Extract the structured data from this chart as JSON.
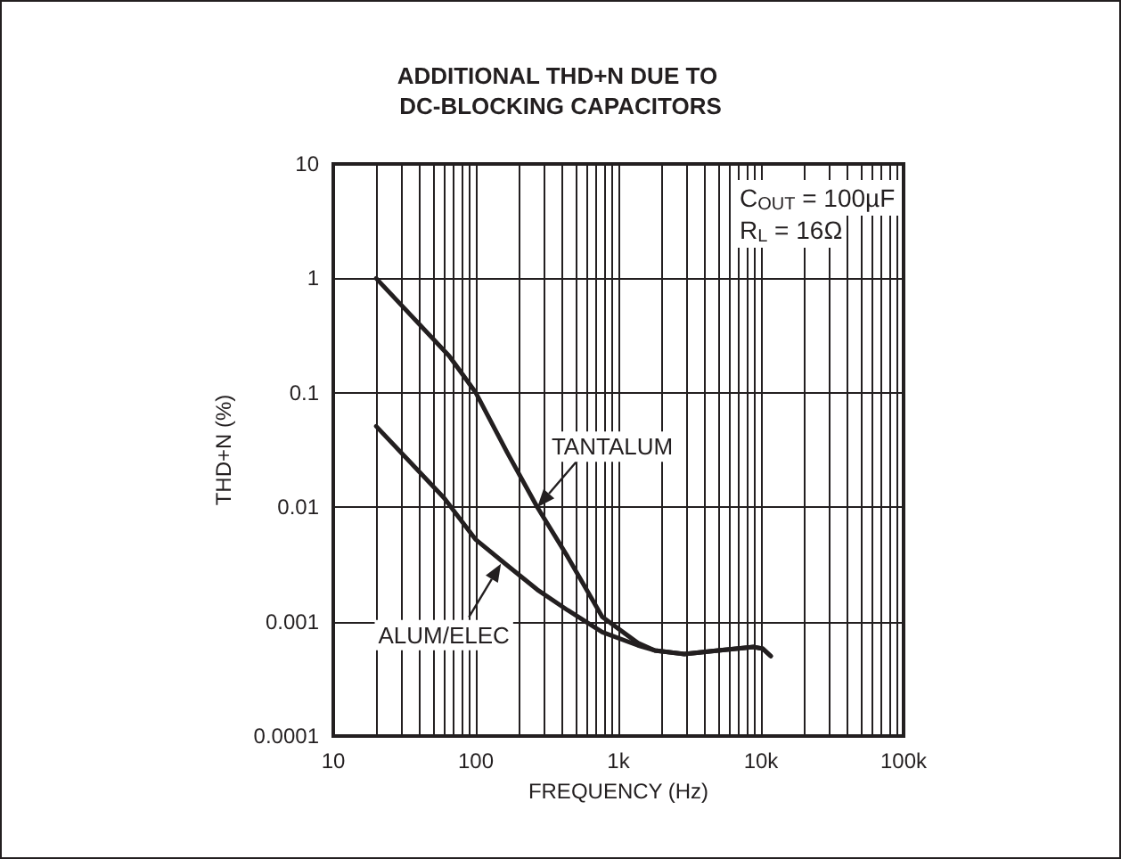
{
  "chart_data": {
    "type": "line",
    "title": "ADDITIONAL THD+N DUE TO DC-BLOCKING CAPACITORS",
    "xlabel": "FREQUENCY (Hz)",
    "ylabel": "THD+N (%)",
    "log": "xy",
    "grid": true,
    "marker": "none",
    "line_style": "solid",
    "xlim": [
      10,
      100000
    ],
    "xticks": [
      {
        "value": 10,
        "label": "10"
      },
      {
        "value": 100,
        "label": "100"
      },
      {
        "value": 1000,
        "label": "1k"
      },
      {
        "value": 10000,
        "label": "10k"
      },
      {
        "value": 100000,
        "label": "100k"
      }
    ],
    "ylim": [
      0.0001,
      10
    ],
    "yticks": [
      0.0001,
      0.001,
      0.01,
      0.1,
      1,
      10
    ],
    "series": [
      {
        "color": "#231f20",
        "x": [
          20,
          65,
          100,
          166,
          270,
          440,
          770,
          1370,
          1800,
          2900,
          5000,
          8900,
          10300,
          11700
        ],
        "values": [
          1.0,
          0.21,
          0.1,
          0.03,
          0.01,
          0.0037,
          0.0011,
          0.00065,
          0.00056,
          0.00052,
          0.00056,
          0.0006,
          0.00058,
          0.0005
        ]
      },
      {
        "color": "#231f20",
        "x": [
          20,
          60,
          100,
          166,
          270,
          440,
          770,
          1370,
          1800,
          2900,
          5000,
          8900,
          10300,
          11700
        ],
        "values": [
          0.051,
          0.012,
          0.0052,
          0.0031,
          0.0019,
          0.00126,
          0.00081,
          0.00062,
          0.00056,
          0.00052,
          0.00056,
          0.0006,
          0.00058,
          0.0005
        ]
      }
    ],
    "annotations": [
      {
        "text": "TANTALUM",
        "x": 270,
        "y": 0.01
      },
      {
        "text": "ALUM/ELEC",
        "x": 150,
        "y": 0.0032
      },
      "C$_{OUT}$ = 100µF",
      "R$_{L}$ = 16Ω"
    ]
  }
}
